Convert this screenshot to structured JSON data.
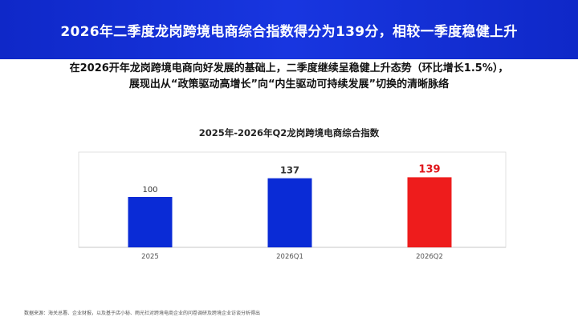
{
  "header": {
    "title": "2026年二季度龙岗跨境电商综合指数得分为139分，相较一季度稳健上升"
  },
  "summary": {
    "line1": "在2026开年龙岗跨境电商向好发展的基础上，二季度继续呈稳健上升态势（环比增长1.5%），",
    "line2": "展现出从“政策驱动高增长”向“内生驱动可持续发展”切换的清晰脉络"
  },
  "chart_data": {
    "type": "bar",
    "title": "2025年-2026年Q2龙岗跨境电商综合指数",
    "categories": [
      "2025",
      "2026Q1",
      "2026Q2"
    ],
    "values": [
      100,
      137,
      139
    ],
    "xlabel": "",
    "ylabel": "",
    "ylim": [
      0,
      160
    ],
    "grid": false,
    "legend": "none",
    "colors": [
      "#0a2bd6",
      "#0a2bd6",
      "#ee1c1c"
    ],
    "label_colors": [
      "#333333",
      "#333333",
      "#e0161b"
    ],
    "label_bold": [
      false,
      true,
      true
    ]
  },
  "footnote": {
    "text": "数据来源：海关总署、企业财报，以及基于店小秘、雨光社对跨境电商企业的问卷调研及跨境企业访谈分析得出"
  }
}
